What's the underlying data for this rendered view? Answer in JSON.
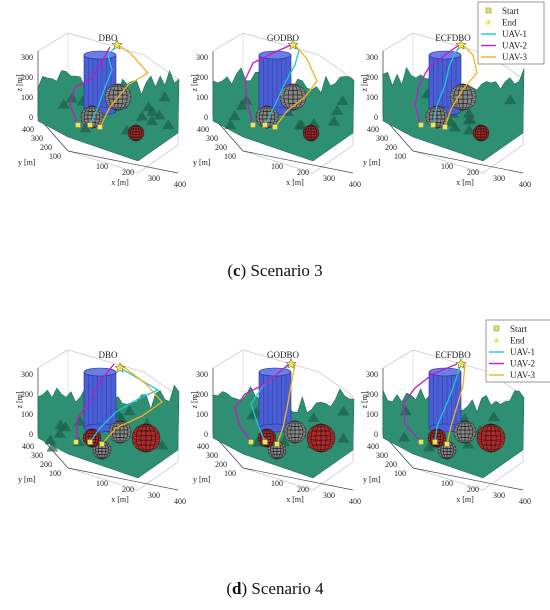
{
  "captions": [
    {
      "letter": "c",
      "text": "Scenario 3"
    },
    {
      "letter": "d",
      "text": "Scenario 4"
    }
  ],
  "legend": {
    "entries": [
      {
        "label": "Start",
        "marker": "square",
        "color": "#e8e84a"
      },
      {
        "label": "End",
        "marker": "star",
        "color": "#e8e84a"
      },
      {
        "label": "UAV-1",
        "marker": "line",
        "color": "#1fc8d8"
      },
      {
        "label": "UAV-2",
        "marker": "line",
        "color": "#c21ac8"
      },
      {
        "label": "UAV-3",
        "marker": "line",
        "color": "#f5b21e"
      }
    ]
  },
  "colors": {
    "terrain": "#2e8f72",
    "terrain_dark": "#1d5e48",
    "cylinder": "#4a5fd6",
    "sphere_gray": "#8a8a8a",
    "sphere_red": "#b52a2a"
  },
  "chart_data": [
    {
      "type": "line",
      "title": "DBO",
      "scenario": "c",
      "zlabel": "z [m]",
      "ylabel": "y [m]",
      "xlabel": "x [m]",
      "zticks": [
        "0",
        "100",
        "200",
        "300"
      ],
      "yticks": [
        "100",
        "200",
        "300",
        "400"
      ],
      "xticks": [
        "100",
        "200",
        "300",
        "400"
      ],
      "zlim": [
        0,
        300
      ],
      "ylim": [
        0,
        400
      ],
      "xlim": [
        0,
        400
      ]
    },
    {
      "type": "line",
      "title": "GODBO",
      "scenario": "c",
      "zlabel": "z [m]",
      "ylabel": "y [m]",
      "xlabel": "x [m]",
      "zticks": [
        "0",
        "100",
        "200",
        "300"
      ],
      "yticks": [
        "100",
        "200",
        "300",
        "400"
      ],
      "xticks": [
        "100",
        "200",
        "300",
        "400"
      ],
      "zlim": [
        0,
        300
      ],
      "ylim": [
        0,
        400
      ],
      "xlim": [
        0,
        400
      ]
    },
    {
      "type": "line",
      "title": "ECFDBO",
      "scenario": "c",
      "zlabel": "z [m]",
      "ylabel": "y [m]",
      "xlabel": "x [m]",
      "zticks": [
        "0",
        "100",
        "200",
        "300"
      ],
      "yticks": [
        "100",
        "200",
        "300",
        "400"
      ],
      "xticks": [
        "100",
        "200",
        "300",
        "400"
      ],
      "zlim": [
        0,
        300
      ],
      "ylim": [
        0,
        400
      ],
      "xlim": [
        0,
        400
      ]
    },
    {
      "type": "line",
      "title": "DBO",
      "scenario": "d",
      "zlabel": "z [m]",
      "ylabel": "y [m]",
      "xlabel": "x [m]",
      "zticks": [
        "0",
        "100",
        "200",
        "300"
      ],
      "yticks": [
        "100",
        "200",
        "300",
        "400"
      ],
      "xticks": [
        "100",
        "200",
        "300",
        "400"
      ],
      "zlim": [
        0,
        300
      ],
      "ylim": [
        0,
        400
      ],
      "xlim": [
        0,
        400
      ]
    },
    {
      "type": "line",
      "title": "GODBO",
      "scenario": "d",
      "zlabel": "z [m]",
      "ylabel": "y [m]",
      "xlabel": "x [m]",
      "zticks": [
        "0",
        "100",
        "200",
        "300"
      ],
      "yticks": [
        "100",
        "200",
        "300",
        "400"
      ],
      "xticks": [
        "100",
        "200",
        "300",
        "400"
      ],
      "zlim": [
        0,
        300
      ],
      "ylim": [
        0,
        400
      ],
      "xlim": [
        0,
        400
      ]
    },
    {
      "type": "line",
      "title": "ECFDBO",
      "scenario": "d",
      "zlabel": "z [m]",
      "ylabel": "y [m]",
      "xlabel": "x [m]",
      "zticks": [
        "0",
        "100",
        "200",
        "300"
      ],
      "yticks": [
        "100",
        "200",
        "300",
        "400"
      ],
      "xticks": [
        "100",
        "200",
        "300",
        "400"
      ],
      "zlim": [
        0,
        300
      ],
      "ylim": [
        0,
        400
      ],
      "xlim": [
        0,
        400
      ]
    }
  ]
}
